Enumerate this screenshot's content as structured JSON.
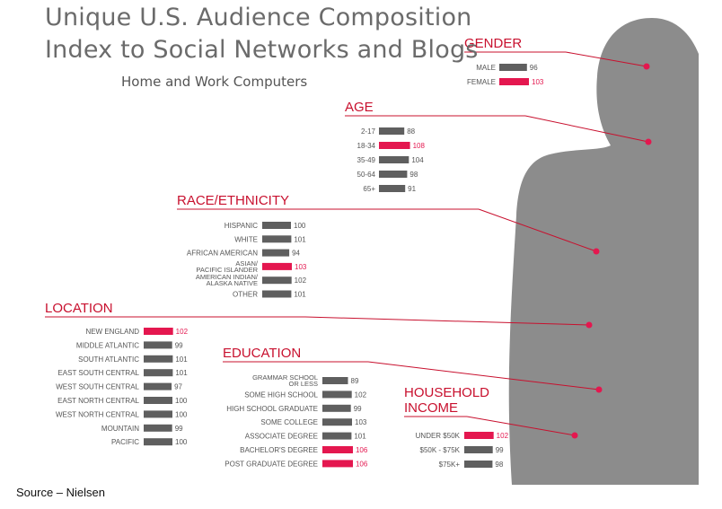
{
  "title_line1": "Unique U.S. Audience Composition",
  "title_line2": "Index to Social Networks and Blogs",
  "subtitle": "Home and Work Computers",
  "source": "Source – Nielsen",
  "colors": {
    "highlight": "#e4174f",
    "bar": "#5f5f5f",
    "silhouette": "#8c8c8c",
    "heading": "#c8102e",
    "title": "#6b6b6b"
  },
  "chart_data": {
    "type": "bar",
    "title": "Unique U.S. Audience Composition Index to Social Networks and Blogs",
    "subtitle": "Home and Work Computers",
    "groups": [
      {
        "heading": "GENDER",
        "categories": [
          "MALE",
          "FEMALE"
        ],
        "values": [
          96,
          103
        ],
        "highlighted": [
          "FEMALE"
        ]
      },
      {
        "heading": "AGE",
        "categories": [
          "2-17",
          "18-34",
          "35-49",
          "50-64",
          "65+"
        ],
        "values": [
          88,
          108,
          104,
          98,
          91
        ],
        "highlighted": [
          "18-34"
        ]
      },
      {
        "heading": "RACE/ETHNICITY",
        "categories": [
          "HISPANIC",
          "WHITE",
          "AFRICAN AMERICAN",
          "ASIAN/ PACIFIC ISLANDER",
          "AMERICAN INDIAN/ ALASKA NATIVE",
          "OTHER"
        ],
        "values": [
          100,
          101,
          94,
          103,
          102,
          101
        ],
        "highlighted": [
          "ASIAN/ PACIFIC ISLANDER"
        ]
      },
      {
        "heading": "LOCATION",
        "categories": [
          "NEW ENGLAND",
          "MIDDLE ATLANTIC",
          "SOUTH ATLANTIC",
          "EAST SOUTH CENTRAL",
          "WEST SOUTH CENTRAL",
          "EAST NORTH CENTRAL",
          "WEST NORTH CENTRAL",
          "MOUNTAIN",
          "PACIFIC"
        ],
        "values": [
          102,
          99,
          101,
          101,
          97,
          100,
          100,
          99,
          100
        ],
        "highlighted": [
          "NEW ENGLAND"
        ]
      },
      {
        "heading": "EDUCATION",
        "categories": [
          "GRAMMAR SCHOOL OR LESS",
          "SOME HIGH SCHOOL",
          "HIGH SCHOOL GRADUATE",
          "SOME COLLEGE",
          "ASSOCIATE DEGREE",
          "BACHELOR'S DEGREE",
          "POST GRADUATE DEGREE"
        ],
        "values": [
          89,
          102,
          99,
          103,
          101,
          106,
          106
        ],
        "highlighted": [
          "BACHELOR'S DEGREE",
          "POST GRADUATE DEGREE"
        ]
      },
      {
        "heading": "HOUSEHOLD INCOME",
        "categories": [
          "UNDER $50K",
          "$50K - $75K",
          "$75K+"
        ],
        "values": [
          102,
          99,
          98
        ],
        "highlighted": [
          "UNDER $50K"
        ]
      }
    ]
  }
}
